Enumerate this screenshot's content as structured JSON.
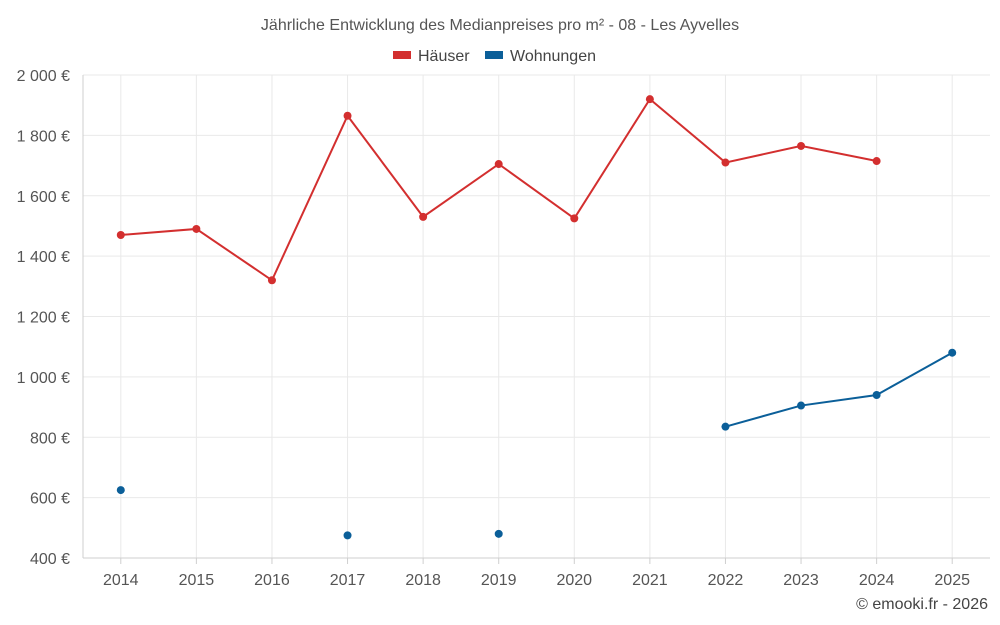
{
  "chart_data": {
    "type": "line",
    "title": "Jährliche Entwicklung des Medianpreises pro m² - 08 - Les Ayvelles",
    "categories": [
      "2014",
      "2015",
      "2016",
      "2017",
      "2018",
      "2019",
      "2020",
      "2021",
      "2022",
      "2023",
      "2024",
      "2025"
    ],
    "ylim": [
      400,
      2000
    ],
    "yticks": [
      400,
      600,
      800,
      1000,
      1200,
      1400,
      1600,
      1800,
      2000
    ],
    "ytick_labels": [
      "400 €",
      "600 €",
      "800 €",
      "1 000 €",
      "1 200 €",
      "1 400 €",
      "1 600 €",
      "1 800 €",
      "2 000 €"
    ],
    "legend_position": "top-center",
    "grid": true,
    "series": [
      {
        "name": "Häuser",
        "color": "#d32f2f",
        "values": [
          1470,
          1490,
          1320,
          1865,
          1530,
          1705,
          1525,
          1920,
          1710,
          1765,
          1715,
          null
        ]
      },
      {
        "name": "Wohnungen",
        "color": "#0b5f99",
        "values": [
          625,
          null,
          null,
          475,
          null,
          480,
          null,
          null,
          835,
          905,
          940,
          1080
        ]
      }
    ]
  },
  "credit": "© emooki.fr - 2026"
}
